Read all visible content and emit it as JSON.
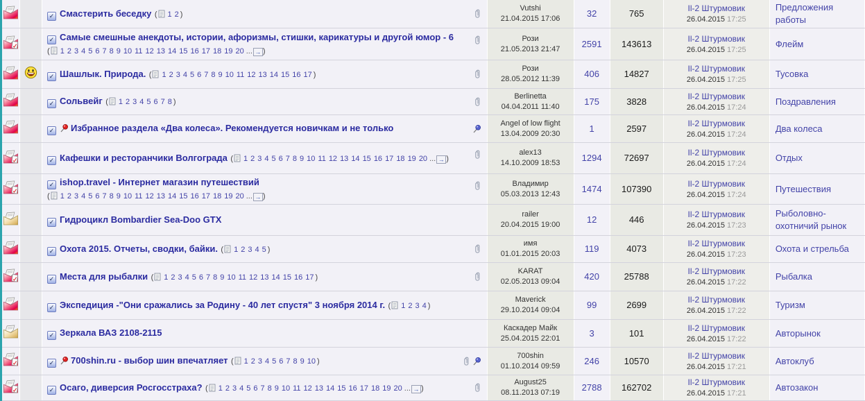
{
  "colors": {
    "accent_border": "#2ba4ad",
    "title_link": "#2b2ba0",
    "link": "#4343a8"
  },
  "labels": {
    "pagination_ellipsis": "...",
    "last_page_arrow": "→",
    "checkbox_glyph": "✓",
    "open_paren": "(",
    "close_paren": ")"
  },
  "rows": [
    {
      "icon": "hot",
      "smiley": false,
      "pinned": false,
      "paperclip": true,
      "pin_right": false,
      "title": "Смастерить беседку",
      "pages": [
        "1",
        "2"
      ],
      "pages_more": false,
      "author": "Vutshi",
      "started": "21.04.2015 17:06",
      "replies": "32",
      "views": "765",
      "last_by": "Il-2 Штурмовик",
      "last_date": "26.04.2015",
      "last_time": "17:25",
      "forum": "Предложения работы"
    },
    {
      "icon": "hot-posted",
      "smiley": false,
      "pinned": false,
      "paperclip": true,
      "pin_right": false,
      "title": "Самые смешные анекдоты, истории, афоризмы, стишки, карикатуры и другой юмор - 6",
      "pages": [
        "1",
        "2",
        "3",
        "4",
        "5",
        "6",
        "7",
        "8",
        "9",
        "10",
        "11",
        "12",
        "13",
        "14",
        "15",
        "16",
        "17",
        "18",
        "19",
        "20"
      ],
      "pages_more": true,
      "author": "Рози",
      "started": "21.05.2013 21:47",
      "replies": "2591",
      "views": "143613",
      "last_by": "Il-2 Штурмовик",
      "last_date": "26.04.2015",
      "last_time": "17:25",
      "forum": "Флейм"
    },
    {
      "icon": "hot",
      "smiley": true,
      "pinned": false,
      "paperclip": true,
      "pin_right": false,
      "title": "Шашлык. Природа.",
      "pages": [
        "1",
        "2",
        "3",
        "4",
        "5",
        "6",
        "7",
        "8",
        "9",
        "10",
        "11",
        "12",
        "13",
        "14",
        "15",
        "16",
        "17"
      ],
      "pages_more": false,
      "author": "Рози",
      "started": "28.05.2012 11:39",
      "replies": "406",
      "views": "14827",
      "last_by": "Il-2 Штурмовик",
      "last_date": "26.04.2015",
      "last_time": "17:25",
      "forum": "Тусовка"
    },
    {
      "icon": "hot",
      "smiley": false,
      "pinned": false,
      "paperclip": true,
      "pin_right": false,
      "title": "Сольвейг",
      "pages": [
        "1",
        "2",
        "3",
        "4",
        "5",
        "6",
        "7",
        "8"
      ],
      "pages_more": false,
      "author": "Berlinetta",
      "started": "04.04.2011 11:40",
      "replies": "175",
      "views": "3828",
      "last_by": "Il-2 Штурмовик",
      "last_date": "26.04.2015",
      "last_time": "17:24",
      "forum": "Поздравления"
    },
    {
      "icon": "hot",
      "smiley": false,
      "pinned": true,
      "paperclip": false,
      "pin_right": true,
      "title": "Избранное раздела «Два колеса». Рекомендуется новичкам и не только",
      "pages": [],
      "pages_more": false,
      "author": "Angel of low flight",
      "started": "13.04.2009 20:30",
      "replies": "1",
      "views": "2597",
      "last_by": "Il-2 Штурмовик",
      "last_date": "26.04.2015",
      "last_time": "17:24",
      "forum": "Два колеса"
    },
    {
      "icon": "hot-posted",
      "smiley": false,
      "pinned": false,
      "paperclip": true,
      "pin_right": false,
      "title": "Кафешки и ресторанчики Волгограда",
      "pages": [
        "1",
        "2",
        "3",
        "4",
        "5",
        "6",
        "7",
        "8",
        "9",
        "10",
        "11",
        "12",
        "13",
        "14",
        "15",
        "16",
        "17",
        "18",
        "19",
        "20"
      ],
      "pages_more": true,
      "author": "alex13",
      "started": "14.10.2009 18:53",
      "replies": "1294",
      "views": "72697",
      "last_by": "Il-2 Штурмовик",
      "last_date": "26.04.2015",
      "last_time": "17:24",
      "forum": "Отдых"
    },
    {
      "icon": "hot-posted",
      "smiley": false,
      "pinned": false,
      "paperclip": true,
      "pin_right": false,
      "title": "ishop.travel - Интернет магазин путешествий",
      "pages": [
        "1",
        "2",
        "3",
        "4",
        "5",
        "6",
        "7",
        "8",
        "9",
        "10",
        "11",
        "12",
        "13",
        "14",
        "15",
        "16",
        "17",
        "18",
        "19",
        "20"
      ],
      "pages_more": true,
      "author": "Владимир",
      "started": "05.03.2013 12:43",
      "replies": "1474",
      "views": "107390",
      "last_by": "Il-2 Штурмовик",
      "last_date": "26.04.2015",
      "last_time": "17:24",
      "forum": "Путешествия"
    },
    {
      "icon": "warm",
      "smiley": false,
      "pinned": false,
      "paperclip": false,
      "pin_right": false,
      "title": "Гидроцикл Bombardier Sea-Doo GTX",
      "pages": [],
      "pages_more": false,
      "author": "railer",
      "started": "20.04.2015 19:00",
      "replies": "12",
      "views": "446",
      "last_by": "Il-2 Штурмовик",
      "last_date": "26.04.2015",
      "last_time": "17:23",
      "forum": "Рыболовно-охотничий рынок"
    },
    {
      "icon": "hot",
      "smiley": false,
      "pinned": false,
      "paperclip": true,
      "pin_right": false,
      "title": "Охота 2015. Отчеты, сводки, байки.",
      "pages": [
        "1",
        "2",
        "3",
        "4",
        "5"
      ],
      "pages_more": false,
      "author": "имя",
      "started": "01.01.2015 20:03",
      "replies": "119",
      "views": "4073",
      "last_by": "Il-2 Штурмовик",
      "last_date": "26.04.2015",
      "last_time": "17:23",
      "forum": "Охота и стрельба"
    },
    {
      "icon": "hot-posted",
      "smiley": false,
      "pinned": false,
      "paperclip": true,
      "pin_right": false,
      "title": "Места для рыбалки",
      "pages": [
        "1",
        "2",
        "3",
        "4",
        "5",
        "6",
        "7",
        "8",
        "9",
        "10",
        "11",
        "12",
        "13",
        "14",
        "15",
        "16",
        "17"
      ],
      "pages_more": false,
      "author": "KARAT",
      "started": "02.05.2013 09:04",
      "replies": "420",
      "views": "25788",
      "last_by": "Il-2 Штурмовик",
      "last_date": "26.04.2015",
      "last_time": "17:22",
      "forum": "Рыбалка"
    },
    {
      "icon": "hot",
      "smiley": false,
      "pinned": false,
      "paperclip": false,
      "pin_right": false,
      "title": "Экспедиция -\"Они сражались за Родину - 40 лет спустя\" 3 ноября 2014 г.",
      "pages": [
        "1",
        "2",
        "3",
        "4"
      ],
      "pages_more": false,
      "author": "Maverick",
      "started": "29.10.2014 09:04",
      "replies": "99",
      "views": "2699",
      "last_by": "Il-2 Штурмовик",
      "last_date": "26.04.2015",
      "last_time": "17:22",
      "forum": "Туризм"
    },
    {
      "icon": "warm",
      "smiley": false,
      "pinned": false,
      "paperclip": false,
      "pin_right": false,
      "title": "Зеркала ВАЗ 2108-2115",
      "pages": [],
      "pages_more": false,
      "author": "Каскадер Майк",
      "started": "25.04.2015 22:01",
      "replies": "3",
      "views": "101",
      "last_by": "Il-2 Штурмовик",
      "last_date": "26.04.2015",
      "last_time": "17:22",
      "forum": "Авторынок"
    },
    {
      "icon": "hot-posted",
      "smiley": false,
      "pinned": true,
      "paperclip": true,
      "pin_right": true,
      "title": "700shin.ru - выбор шин впечатляет",
      "pages": [
        "1",
        "2",
        "3",
        "4",
        "5",
        "6",
        "7",
        "8",
        "9",
        "10"
      ],
      "pages_more": false,
      "author": "700shin",
      "started": "01.10.2014 09:59",
      "replies": "246",
      "views": "10570",
      "last_by": "Il-2 Штурмовик",
      "last_date": "26.04.2015",
      "last_time": "17:21",
      "forum": "Автоклуб"
    },
    {
      "icon": "hot-posted",
      "smiley": false,
      "pinned": false,
      "paperclip": true,
      "pin_right": false,
      "title": "Осаго, диверсия Росгосстраха?",
      "pages": [
        "1",
        "2",
        "3",
        "4",
        "5",
        "6",
        "7",
        "8",
        "9",
        "10",
        "11",
        "12",
        "13",
        "14",
        "15",
        "16",
        "17",
        "18",
        "19",
        "20"
      ],
      "pages_more": true,
      "author": "August25",
      "started": "08.11.2013 07:19",
      "replies": "2788",
      "views": "162702",
      "last_by": "Il-2 Штурмовик",
      "last_date": "26.04.2015",
      "last_time": "17:21",
      "forum": "Автозакон"
    }
  ]
}
